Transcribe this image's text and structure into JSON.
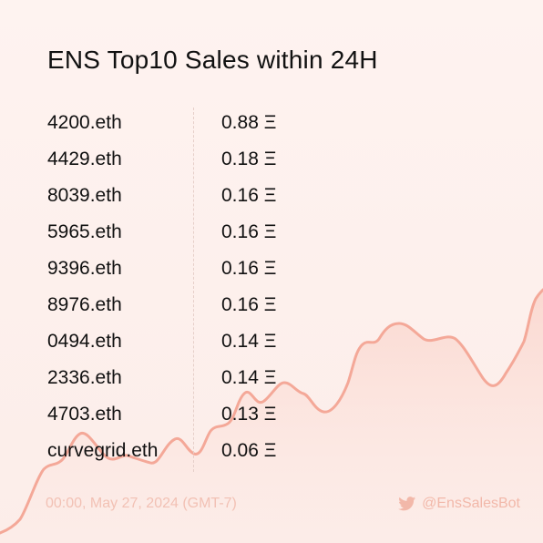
{
  "title": "ENS Top10 Sales within 24H",
  "sales": [
    {
      "name": "4200.eth",
      "price": "0.88 Ξ"
    },
    {
      "name": "4429.eth",
      "price": "0.18 Ξ"
    },
    {
      "name": "8039.eth",
      "price": "0.16 Ξ"
    },
    {
      "name": "5965.eth",
      "price": "0.16 Ξ"
    },
    {
      "name": "9396.eth",
      "price": "0.16 Ξ"
    },
    {
      "name": "8976.eth",
      "price": "0.16 Ξ"
    },
    {
      "name": "0494.eth",
      "price": "0.14 Ξ"
    },
    {
      "name": "2336.eth",
      "price": "0.14 Ξ"
    },
    {
      "name": "4703.eth",
      "price": "0.13 Ξ"
    },
    {
      "name": "curvegrid.eth",
      "price": "0.06 Ξ"
    }
  ],
  "footer": {
    "timestamp": "00:00, May 27, 2024 (GMT-7)",
    "handle": "@EnsSalesBot",
    "icon": "twitter-bird-icon"
  },
  "colors": {
    "accent": "#f4a898",
    "background": "#fef3f0",
    "text": "#111111",
    "footer_text": "#f2c1b4"
  }
}
